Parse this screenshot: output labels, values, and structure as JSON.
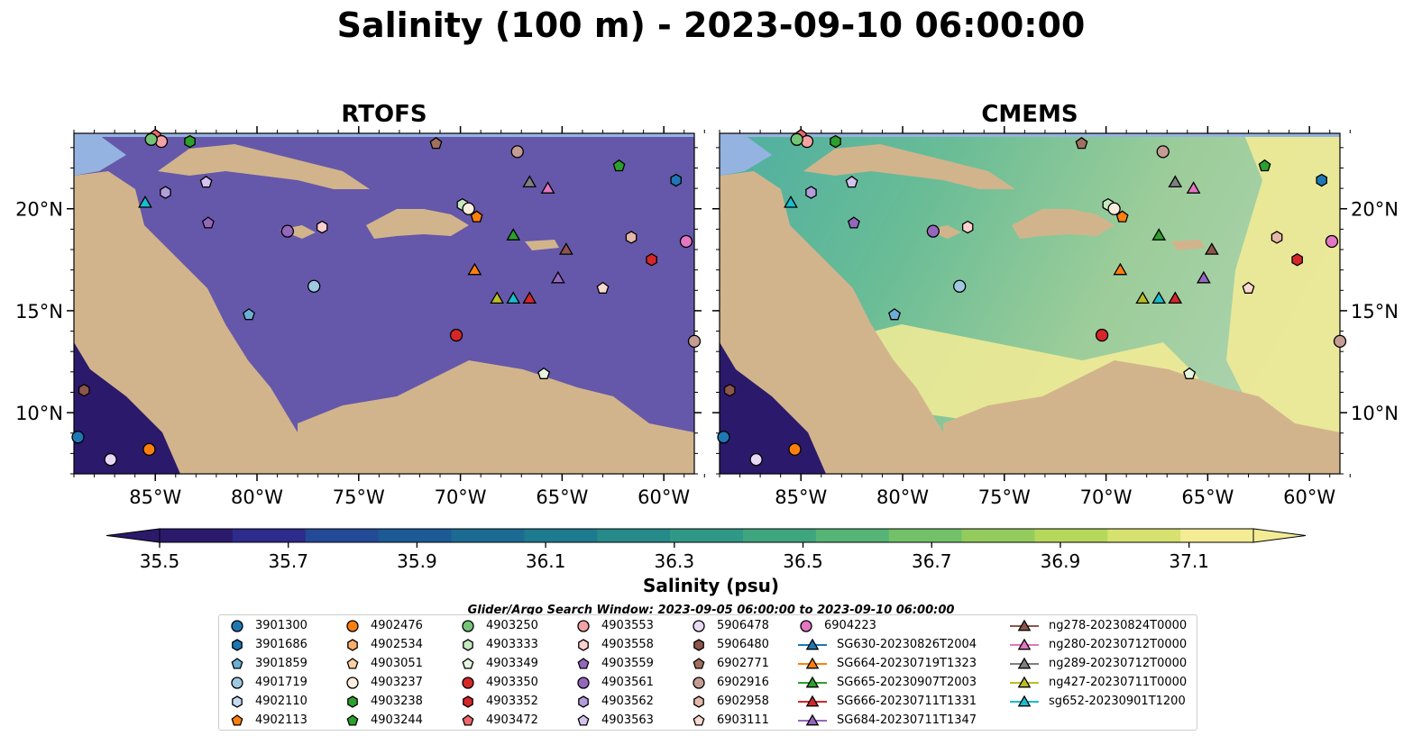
{
  "title": "Salinity (100 m) - 2023-09-10 06:00:00",
  "panels": [
    {
      "title": "RTOFS"
    },
    {
      "title": "CMEMS"
    }
  ],
  "axes": {
    "lon_ticks": [
      "85°W",
      "80°W",
      "75°W",
      "70°W",
      "65°W",
      "60°W"
    ],
    "lon_values": [
      -85,
      -80,
      -75,
      -70,
      -65,
      -60
    ],
    "lat_ticks": [
      "20°N",
      "15°N",
      "10°N"
    ],
    "lat_values": [
      20,
      15,
      10
    ],
    "lon_range": [
      -89,
      -58.5
    ],
    "lat_range": [
      7,
      23.7
    ]
  },
  "colorbar": {
    "label": "Salinity (psu)",
    "ticks": [
      "35.5",
      "35.7",
      "35.9",
      "36.1",
      "36.3",
      "36.5",
      "36.7",
      "36.9",
      "37.1"
    ],
    "range": [
      35.5,
      37.2
    ],
    "colors": [
      "#2b1a6b",
      "#2d2b8c",
      "#234a96",
      "#1c5a96",
      "#1b6b92",
      "#1e7a8f",
      "#268a8a",
      "#2f9886",
      "#3ea57f",
      "#55b476",
      "#72c169",
      "#93cc5d",
      "#b6d85a",
      "#d7e16f",
      "#f4ec95"
    ],
    "extend": "both"
  },
  "search_window": "Glider/Argo Search Window: 2023-09-05 06:00:00 to 2023-09-10 06:00:00",
  "legend_columns": [
    [
      {
        "label": "3901300",
        "color": "#1f77b4",
        "marker": "circle"
      },
      {
        "label": "3901686",
        "color": "#1f77b4",
        "marker": "hexagon"
      },
      {
        "label": "3901859",
        "color": "#6baed6",
        "marker": "pentagon"
      },
      {
        "label": "4901719",
        "color": "#9ecae1",
        "marker": "circle"
      },
      {
        "label": "4902110",
        "color": "#c6dbef",
        "marker": "hexagon"
      },
      {
        "label": "4902113",
        "color": "#ff7f0e",
        "marker": "pentagon"
      }
    ],
    [
      {
        "label": "4902476",
        "color": "#ff7f0e",
        "marker": "circle"
      },
      {
        "label": "4902534",
        "color": "#fdae6b",
        "marker": "hexagon"
      },
      {
        "label": "4903051",
        "color": "#fdd0a2",
        "marker": "pentagon"
      },
      {
        "label": "4903237",
        "color": "#feeedd",
        "marker": "circle"
      },
      {
        "label": "4903238",
        "color": "#2ca02c",
        "marker": "hexagon"
      },
      {
        "label": "4903244",
        "color": "#2ca02c",
        "marker": "pentagon"
      }
    ],
    [
      {
        "label": "4903250",
        "color": "#74c476",
        "marker": "circle"
      },
      {
        "label": "4903333",
        "color": "#c7e9c0",
        "marker": "hexagon"
      },
      {
        "label": "4903349",
        "color": "#e5f5e0",
        "marker": "pentagon"
      },
      {
        "label": "4903350",
        "color": "#d62728",
        "marker": "circle"
      },
      {
        "label": "4903352",
        "color": "#d62728",
        "marker": "hexagon"
      },
      {
        "label": "4903472",
        "color": "#f0676e",
        "marker": "pentagon"
      }
    ],
    [
      {
        "label": "4903553",
        "color": "#f4a2a3",
        "marker": "circle"
      },
      {
        "label": "4903558",
        "color": "#fcd0cf",
        "marker": "hexagon"
      },
      {
        "label": "4903559",
        "color": "#9467bd",
        "marker": "pentagon"
      },
      {
        "label": "4903561",
        "color": "#9467bd",
        "marker": "circle"
      },
      {
        "label": "4903562",
        "color": "#b39ddb",
        "marker": "hexagon"
      },
      {
        "label": "4903563",
        "color": "#d4c3ec",
        "marker": "pentagon"
      }
    ],
    [
      {
        "label": "5906478",
        "color": "#e8daf5",
        "marker": "circle"
      },
      {
        "label": "5906480",
        "color": "#8c564b",
        "marker": "hexagon"
      },
      {
        "label": "6902771",
        "color": "#a0705f",
        "marker": "pentagon"
      },
      {
        "label": "6902916",
        "color": "#c49c94",
        "marker": "circle"
      },
      {
        "label": "6902958",
        "color": "#e3b8a8",
        "marker": "hexagon"
      },
      {
        "label": "6903111",
        "color": "#f6d9cf",
        "marker": "pentagon"
      }
    ],
    [
      {
        "label": "6904223",
        "color": "#e377c2",
        "marker": "circle"
      },
      {
        "label": "SG630-20230826T2004",
        "color": "#1f77b4",
        "marker": "triangle"
      },
      {
        "label": "SG664-20230719T1323",
        "color": "#ff7f0e",
        "marker": "triangle"
      },
      {
        "label": "SG665-20230907T2003",
        "color": "#2ca02c",
        "marker": "triangle"
      },
      {
        "label": "SG666-20230711T1331",
        "color": "#d62728",
        "marker": "triangle"
      },
      {
        "label": "SG684-20230711T1347",
        "color": "#9467bd",
        "marker": "triangle"
      }
    ],
    [
      {
        "label": "ng278-20230824T0000",
        "color": "#8c564b",
        "marker": "triangle"
      },
      {
        "label": "ng280-20230712T0000",
        "color": "#e377c2",
        "marker": "triangle"
      },
      {
        "label": "ng289-20230712T0000",
        "color": "#7f7f7f",
        "marker": "triangle"
      },
      {
        "label": "ng427-20230711T0000",
        "color": "#bcbd22",
        "marker": "triangle"
      },
      {
        "label": "sg652-20230901T1200",
        "color": "#17becf",
        "marker": "triangle"
      }
    ]
  ],
  "platforms": [
    {
      "lon": -88.8,
      "lat": 8.8,
      "color": "#1f77b4",
      "marker": "circle"
    },
    {
      "lon": -87.2,
      "lat": 7.7,
      "color": "#e8daf5",
      "marker": "circle"
    },
    {
      "lon": -85.3,
      "lat": 8.2,
      "color": "#ff7f0e",
      "marker": "circle"
    },
    {
      "lon": -88.5,
      "lat": 11.1,
      "color": "#8c564b",
      "marker": "hexagon"
    },
    {
      "lon": -85.0,
      "lat": 23.6,
      "color": "#f0676e",
      "marker": "pentagon"
    },
    {
      "lon": -84.7,
      "lat": 23.3,
      "color": "#f4a2a3",
      "marker": "circle"
    },
    {
      "lon": -85.2,
      "lat": 23.4,
      "color": "#74c476",
      "marker": "circle"
    },
    {
      "lon": -83.3,
      "lat": 23.3,
      "color": "#2ca02c",
      "marker": "hexagon"
    },
    {
      "lon": -84.5,
      "lat": 20.8,
      "color": "#b39ddb",
      "marker": "hexagon"
    },
    {
      "lon": -82.5,
      "lat": 21.3,
      "color": "#d4c3ec",
      "marker": "pentagon"
    },
    {
      "lon": -82.4,
      "lat": 19.3,
      "color": "#9467bd",
      "marker": "pentagon"
    },
    {
      "lon": -78.5,
      "lat": 18.9,
      "color": "#9467bd",
      "marker": "circle"
    },
    {
      "lon": -76.8,
      "lat": 19.1,
      "color": "#fcd0cf",
      "marker": "hexagon"
    },
    {
      "lon": -77.2,
      "lat": 16.2,
      "color": "#9ecae1",
      "marker": "circle"
    },
    {
      "lon": -80.4,
      "lat": 14.8,
      "color": "#6baed6",
      "marker": "pentagon"
    },
    {
      "lon": -71.2,
      "lat": 23.2,
      "color": "#a0705f",
      "marker": "pentagon"
    },
    {
      "lon": -69.9,
      "lat": 20.2,
      "color": "#c7e9c0",
      "marker": "hexagon"
    },
    {
      "lon": -69.6,
      "lat": 20.0,
      "color": "#feeedd",
      "marker": "circle"
    },
    {
      "lon": -69.2,
      "lat": 19.6,
      "color": "#ff7f0e",
      "marker": "pentagon"
    },
    {
      "lon": -67.2,
      "lat": 22.8,
      "color": "#c49c94",
      "marker": "circle"
    },
    {
      "lon": -62.2,
      "lat": 22.1,
      "color": "#2ca02c",
      "marker": "pentagon"
    },
    {
      "lon": -59.4,
      "lat": 21.4,
      "color": "#1f77b4",
      "marker": "hexagon"
    },
    {
      "lon": -61.6,
      "lat": 18.6,
      "color": "#e3b8a8",
      "marker": "hexagon"
    },
    {
      "lon": -58.9,
      "lat": 18.4,
      "color": "#e377c2",
      "marker": "circle"
    },
    {
      "lon": -60.6,
      "lat": 17.5,
      "color": "#d62728",
      "marker": "hexagon"
    },
    {
      "lon": -63.0,
      "lat": 16.1,
      "color": "#f6d9cf",
      "marker": "pentagon"
    },
    {
      "lon": -70.2,
      "lat": 13.8,
      "color": "#d62728",
      "marker": "circle"
    },
    {
      "lon": -65.9,
      "lat": 11.9,
      "color": "#e5f5e0",
      "marker": "pentagon"
    },
    {
      "lon": -58.5,
      "lat": 13.5,
      "color": "#c49c94",
      "marker": "circle"
    },
    {
      "lon": -66.6,
      "lat": 21.3,
      "color": "#7f7f7f",
      "marker": "triangle"
    },
    {
      "lon": -65.7,
      "lat": 21.0,
      "color": "#e377c2",
      "marker": "triangle"
    },
    {
      "lon": -67.4,
      "lat": 18.7,
      "color": "#2ca02c",
      "marker": "triangle"
    },
    {
      "lon": -64.8,
      "lat": 18.0,
      "color": "#8c564b",
      "marker": "triangle"
    },
    {
      "lon": -69.3,
      "lat": 17.0,
      "color": "#ff7f0e",
      "marker": "triangle"
    },
    {
      "lon": -68.2,
      "lat": 15.6,
      "color": "#bcbd22",
      "marker": "triangle"
    },
    {
      "lon": -67.4,
      "lat": 15.6,
      "color": "#17becf",
      "marker": "triangle"
    },
    {
      "lon": -66.6,
      "lat": 15.6,
      "color": "#d62728",
      "marker": "triangle"
    },
    {
      "lon": -65.2,
      "lat": 16.6,
      "color": "#9467bd",
      "marker": "triangle"
    },
    {
      "lon": -85.5,
      "lat": 20.3,
      "color": "#17becf",
      "marker": "triangle"
    }
  ]
}
